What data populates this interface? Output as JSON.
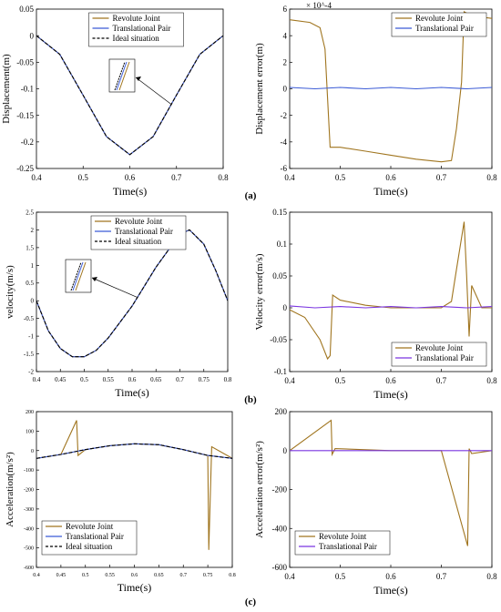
{
  "figure": {
    "panel_labels": [
      "(a)",
      "(b)",
      "(c)"
    ]
  },
  "colors": {
    "revolute": "#A0751F",
    "translational_blue": "#3B5BD6",
    "translational_purple": "#7A35E0",
    "ideal": "#000000"
  },
  "chart_data": [
    {
      "type": "line",
      "ylabel": "Displacement(m)",
      "xlabel": "Time(s)",
      "xlim": [
        0.4,
        0.8
      ],
      "ylim": [
        -0.25,
        0.05
      ],
      "xticks": [
        "0.4",
        "0.5",
        "0.6",
        "0.7",
        "0.8"
      ],
      "yticks": [
        "0.05",
        "0",
        "-0.05",
        "-0.1",
        "-0.15",
        "-0.2",
        "-0.25"
      ],
      "legend": {
        "placement": "top-center",
        "entries": [
          "Revolute Joint",
          "Translational Pair",
          "Ideal situation"
        ]
      },
      "inset": "zoom view with arrow",
      "x": [
        0.4,
        0.45,
        0.5,
        0.55,
        0.6,
        0.65,
        0.7,
        0.75,
        0.8
      ],
      "series": [
        {
          "name": "Revolute Joint",
          "values": [
            0.0,
            -0.035,
            -0.112,
            -0.19,
            -0.224,
            -0.19,
            -0.112,
            -0.035,
            0.0
          ]
        },
        {
          "name": "Translational Pair",
          "values": [
            0.0,
            -0.035,
            -0.112,
            -0.19,
            -0.224,
            -0.19,
            -0.112,
            -0.035,
            0.0
          ]
        },
        {
          "name": "Ideal situation",
          "values": [
            0.0,
            -0.035,
            -0.112,
            -0.19,
            -0.224,
            -0.19,
            -0.112,
            -0.035,
            0.0
          ]
        }
      ]
    },
    {
      "type": "line",
      "ylabel": "Displacement error(m)",
      "xlabel": "Time(s)",
      "xlim": [
        0.4,
        0.8
      ],
      "ylim": [
        -6,
        6
      ],
      "y_multiplier": "× 10^-4",
      "xticks": [
        "0.4",
        "0.5",
        "0.6",
        "0.7",
        "0.8"
      ],
      "yticks": [
        "6",
        "4",
        "2",
        "0",
        "-2",
        "-4",
        "-6"
      ],
      "legend": {
        "placement": "top-right",
        "entries": [
          "Revolute Joint",
          "Translational Pair"
        ]
      },
      "series": [
        {
          "name": "Revolute Joint",
          "x": [
            0.4,
            0.44,
            0.46,
            0.47,
            0.48,
            0.49,
            0.5,
            0.55,
            0.6,
            0.65,
            0.7,
            0.72,
            0.73,
            0.74,
            0.745,
            0.76,
            0.78,
            0.8
          ],
          "values": [
            5.2,
            5.0,
            4.6,
            3.0,
            -4.4,
            -4.4,
            -4.4,
            -4.7,
            -5.0,
            -5.3,
            -5.5,
            -5.4,
            -3.0,
            0.5,
            5.8,
            5.5,
            5.4,
            5.3
          ]
        },
        {
          "name": "Translational Pair",
          "x": [
            0.4,
            0.45,
            0.5,
            0.55,
            0.6,
            0.65,
            0.7,
            0.75,
            0.8
          ],
          "values": [
            0.1,
            0.0,
            0.1,
            0.0,
            0.1,
            0.0,
            0.1,
            0.0,
            0.1
          ]
        }
      ]
    },
    {
      "type": "line",
      "ylabel": "velocity(m/s)",
      "xlabel": "Time(s)",
      "xlim": [
        0.4,
        0.8
      ],
      "ylim": [
        -2,
        2.5
      ],
      "xticks": [
        "0.4",
        "0.45",
        "0.5",
        "0.55",
        "0.6",
        "0.65",
        "0.7",
        "0.75",
        "0.8"
      ],
      "yticks": [
        "2.5",
        "2",
        "1.5",
        "1",
        "0.5",
        "0",
        "-0.5",
        "-1",
        "-1.5",
        "-2"
      ],
      "legend": {
        "placement": "top-center",
        "entries": [
          "Revolute Joint",
          "Translational Pair",
          "Ideal situation"
        ]
      },
      "inset": "zoom view with arrow",
      "x": [
        0.4,
        0.425,
        0.45,
        0.475,
        0.5,
        0.525,
        0.55,
        0.6,
        0.65,
        0.7,
        0.72,
        0.75,
        0.775,
        0.8
      ],
      "series": [
        {
          "name": "Revolute Joint",
          "values": [
            0.0,
            -0.85,
            -1.35,
            -1.58,
            -1.58,
            -1.4,
            -1.05,
            -0.15,
            0.95,
            1.88,
            2.0,
            1.6,
            0.85,
            0.0
          ]
        },
        {
          "name": "Translational Pair",
          "values": [
            0.0,
            -0.85,
            -1.35,
            -1.58,
            -1.58,
            -1.4,
            -1.05,
            -0.15,
            0.95,
            1.88,
            2.0,
            1.6,
            0.85,
            0.0
          ]
        },
        {
          "name": "Ideal situation",
          "values": [
            0.0,
            -0.85,
            -1.35,
            -1.58,
            -1.58,
            -1.4,
            -1.05,
            -0.15,
            0.95,
            1.88,
            2.0,
            1.6,
            0.85,
            0.0
          ]
        }
      ]
    },
    {
      "type": "line",
      "ylabel": "Velocity error(m/s)",
      "xlabel": "Time(s)",
      "xlim": [
        0.4,
        0.8
      ],
      "ylim": [
        -0.1,
        0.15
      ],
      "xticks": [
        "0.4",
        "0.5",
        "0.6",
        "0.7",
        "0.8"
      ],
      "yticks": [
        "0.15",
        "0.1",
        "0.05",
        "0",
        "-0.05",
        "-0.1"
      ],
      "legend": {
        "placement": "bottom-right",
        "entries": [
          "Revolute Joint",
          "Translational Pair"
        ]
      },
      "series": [
        {
          "name": "Revolute Joint",
          "x": [
            0.4,
            0.43,
            0.46,
            0.475,
            0.48,
            0.485,
            0.5,
            0.55,
            0.6,
            0.65,
            0.7,
            0.72,
            0.73,
            0.745,
            0.75,
            0.755,
            0.76,
            0.78,
            0.8
          ],
          "values": [
            -0.003,
            -0.015,
            -0.05,
            -0.08,
            -0.075,
            0.02,
            0.012,
            0.004,
            0.0,
            0.0,
            0.0,
            0.01,
            0.06,
            0.135,
            0.05,
            -0.045,
            0.035,
            0.0,
            0.0
          ]
        },
        {
          "name": "Translational Pair",
          "x": [
            0.4,
            0.45,
            0.5,
            0.55,
            0.6,
            0.65,
            0.7,
            0.75,
            0.8
          ],
          "values": [
            0.003,
            0.0,
            0.002,
            0.0,
            0.002,
            0.0,
            0.002,
            0.0,
            0.002
          ]
        }
      ]
    },
    {
      "type": "line",
      "ylabel": "Acceleration(m/s²)",
      "xlabel": "Time(s)",
      "xlim": [
        0.4,
        0.8
      ],
      "ylim": [
        -600,
        200
      ],
      "xticks": [
        "0.4",
        "0.45",
        "0.5",
        "0.55",
        "0.6",
        "0.65",
        "0.7",
        "0.75",
        "0.8"
      ],
      "yticks": [
        "200",
        "100",
        "0",
        "-100",
        "-200",
        "-300",
        "-400",
        "-500",
        "-600"
      ],
      "legend": {
        "placement": "bottom-left",
        "entries": [
          "Revolute Joint",
          "Translational Pair",
          "Ideal situation"
        ]
      },
      "x": [
        0.4,
        0.45,
        0.5,
        0.55,
        0.6,
        0.65,
        0.7,
        0.75,
        0.8
      ],
      "series": [
        {
          "name": "Revolute Joint",
          "values": [
            -40,
            -20,
            5,
            25,
            35,
            30,
            5,
            -25,
            -40
          ],
          "spikes": [
            [
              0.482,
              155
            ],
            [
              0.485,
              -25
            ],
            [
              0.752,
              -510
            ],
            [
              0.758,
              20
            ]
          ]
        },
        {
          "name": "Translational Pair",
          "values": [
            -40,
            -20,
            5,
            25,
            35,
            30,
            5,
            -25,
            -40
          ]
        },
        {
          "name": "Ideal situation",
          "values": [
            -40,
            -20,
            5,
            25,
            35,
            30,
            5,
            -25,
            -40
          ]
        }
      ]
    },
    {
      "type": "line",
      "ylabel": "Acceleration error(m/s²)",
      "xlabel": "Time(s)",
      "xlim": [
        0.4,
        0.8
      ],
      "ylim": [
        -600,
        200
      ],
      "xticks": [
        "0.4",
        "0.5",
        "0.6",
        "0.7",
        "0.8"
      ],
      "yticks": [
        "200",
        "0",
        "-200",
        "-400",
        "-600"
      ],
      "legend": {
        "placement": "bottom-left",
        "entries": [
          "Revolute Joint",
          "Translational Pair"
        ]
      },
      "series": [
        {
          "name": "Revolute Joint",
          "x": [
            0.4,
            0.482,
            0.484,
            0.49,
            0.6,
            0.7,
            0.752,
            0.755,
            0.76,
            0.8
          ],
          "values": [
            0,
            155,
            -20,
            10,
            0,
            0,
            -490,
            10,
            -15,
            0
          ]
        },
        {
          "name": "Translational Pair",
          "x": [
            0.4,
            0.45,
            0.5,
            0.55,
            0.6,
            0.65,
            0.7,
            0.75,
            0.8
          ],
          "values": [
            0,
            0,
            0,
            0,
            0,
            0,
            0,
            0,
            0
          ]
        }
      ]
    }
  ]
}
